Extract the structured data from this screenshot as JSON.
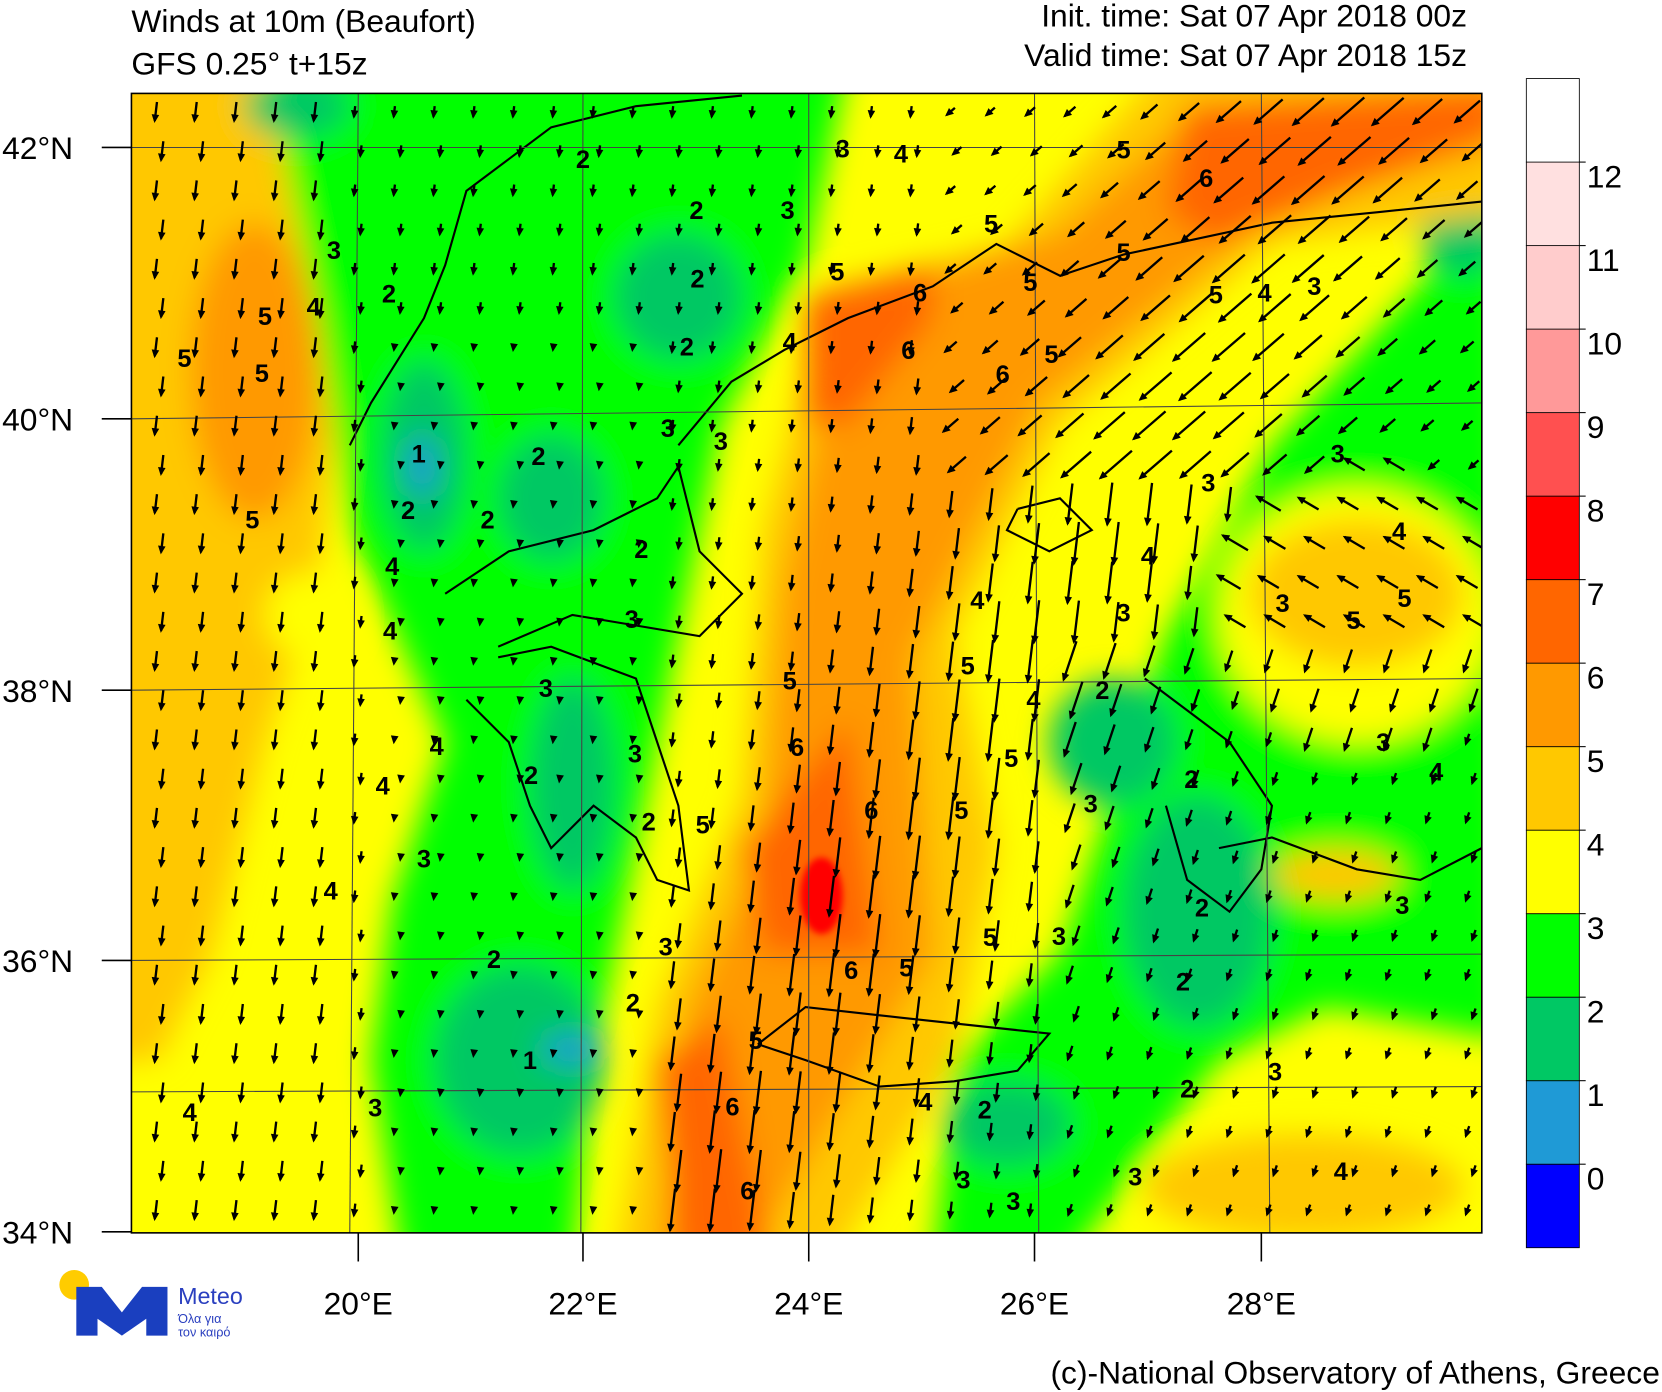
{
  "header": {
    "title": "Winds at 10m (Beaufort)",
    "model": "GFS 0.25° t+15z",
    "init_time": "Init. time: Sat 07 Apr 2018 00z",
    "valid_time": "Valid time: Sat 07 Apr 2018 15z"
  },
  "map": {
    "lat_labels": [
      "42°N",
      "40°N",
      "38°N",
      "36°N",
      "34°N"
    ],
    "lon_labels": [
      "20°E",
      "22°E",
      "24°E",
      "26°E",
      "28°E"
    ],
    "contour_labels": [
      2,
      3,
      4,
      5,
      6,
      2,
      3,
      5,
      5,
      3,
      2,
      2,
      5,
      6,
      5,
      5,
      4,
      3,
      5,
      4,
      5,
      5,
      2,
      4,
      6,
      5,
      6,
      3,
      3,
      1,
      2,
      3,
      3,
      2,
      2,
      5,
      4,
      4,
      4,
      2,
      3,
      5,
      5,
      3,
      3,
      4,
      4,
      5,
      3,
      5,
      4,
      2,
      4,
      6,
      3,
      5,
      3,
      4,
      2,
      4,
      2,
      3,
      6,
      5,
      2,
      5,
      3,
      4,
      3,
      2,
      3,
      5,
      3,
      2,
      5,
      6,
      2,
      2,
      5,
      1,
      3,
      2,
      4,
      2,
      6,
      4,
      3,
      4,
      3,
      3,
      6,
      3
    ]
  },
  "legend": {
    "levels": [
      0,
      1,
      2,
      3,
      4,
      5,
      6,
      7,
      8,
      9,
      10,
      11,
      12
    ],
    "colors": [
      "#0000ff",
      "#1f9ad6",
      "#00c864",
      "#00ff00",
      "#ffff00",
      "#ffc800",
      "#ff9900",
      "#ff6600",
      "#ff0000",
      "#ff5050",
      "#ff9999",
      "#ffcccc",
      "#ffe0e0",
      "#ffffff"
    ]
  },
  "logo": {
    "name": "Meteo",
    "tagline": [
      "Όλα για",
      "τον καιρό"
    ]
  },
  "footer": {
    "credit": "(c)-National Observatory of Athens, Greece"
  }
}
